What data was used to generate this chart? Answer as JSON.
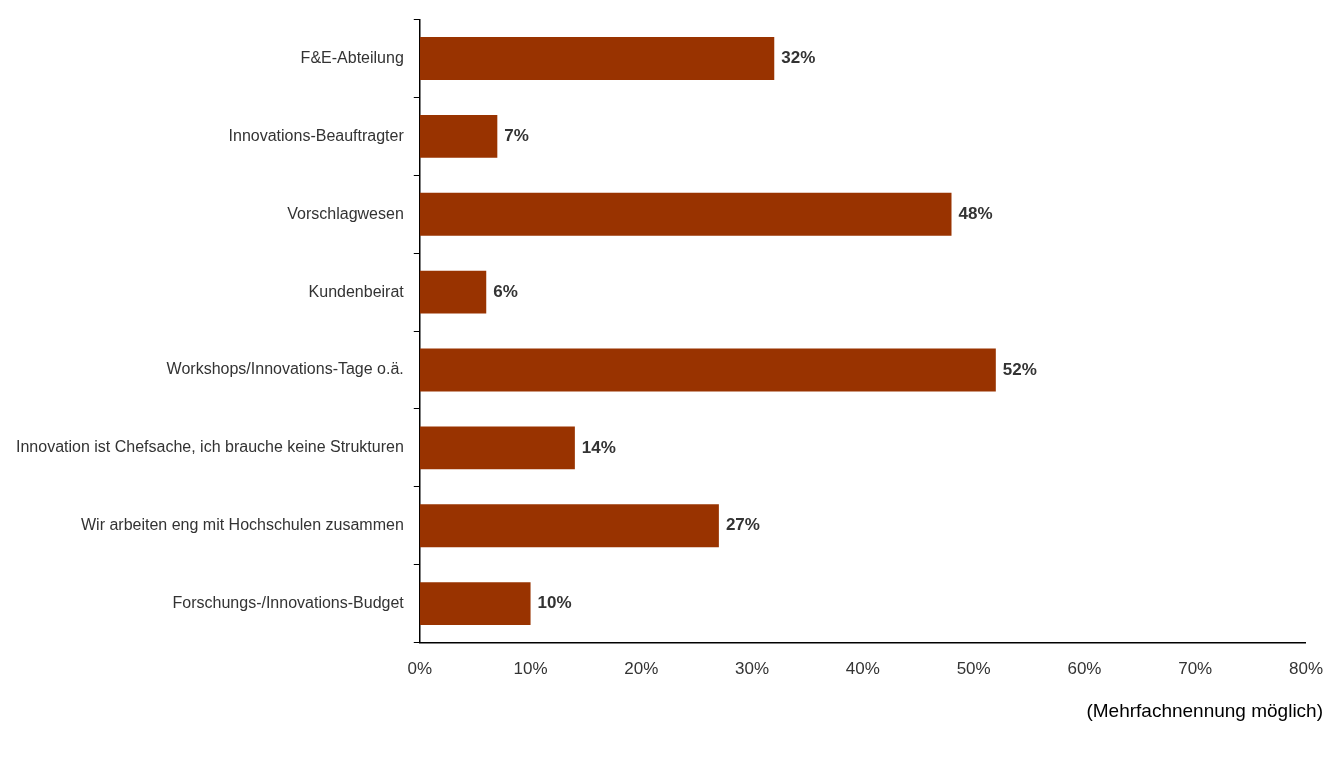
{
  "chart_data": {
    "type": "bar",
    "orientation": "horizontal",
    "categories": [
      "F&E-Abteilung",
      "Innovations-Beauftragter",
      "Vorschlagwesen",
      "Kundenbeirat",
      "Workshops/Innovations-Tage o.ä.",
      "Innovation ist Chefsache, ich brauche keine Strukturen",
      "Wir arbeiten eng mit Hochschulen zusammen",
      "Forschungs-/Innovations-Budget"
    ],
    "values": [
      32,
      7,
      48,
      6,
      52,
      14,
      27,
      10
    ],
    "value_labels": [
      "32%",
      "7%",
      "48%",
      "6%",
      "52%",
      "14%",
      "27%",
      "10%"
    ],
    "color": "#993300",
    "xlim": [
      0,
      80
    ],
    "xticks": [
      {
        "value": 0,
        "label": "0%"
      },
      {
        "value": 10,
        "label": "10%"
      },
      {
        "value": 20,
        "label": "20%"
      },
      {
        "value": 30,
        "label": "30%"
      },
      {
        "value": 40,
        "label": "40%"
      },
      {
        "value": 50,
        "label": "50%"
      },
      {
        "value": 60,
        "label": "60%"
      },
      {
        "value": 70,
        "label": "70%"
      },
      {
        "value": 80,
        "label": "80%"
      }
    ],
    "grid": false,
    "legend": false,
    "annotations": [
      "(Mehrfachnennung möglich)"
    ]
  }
}
